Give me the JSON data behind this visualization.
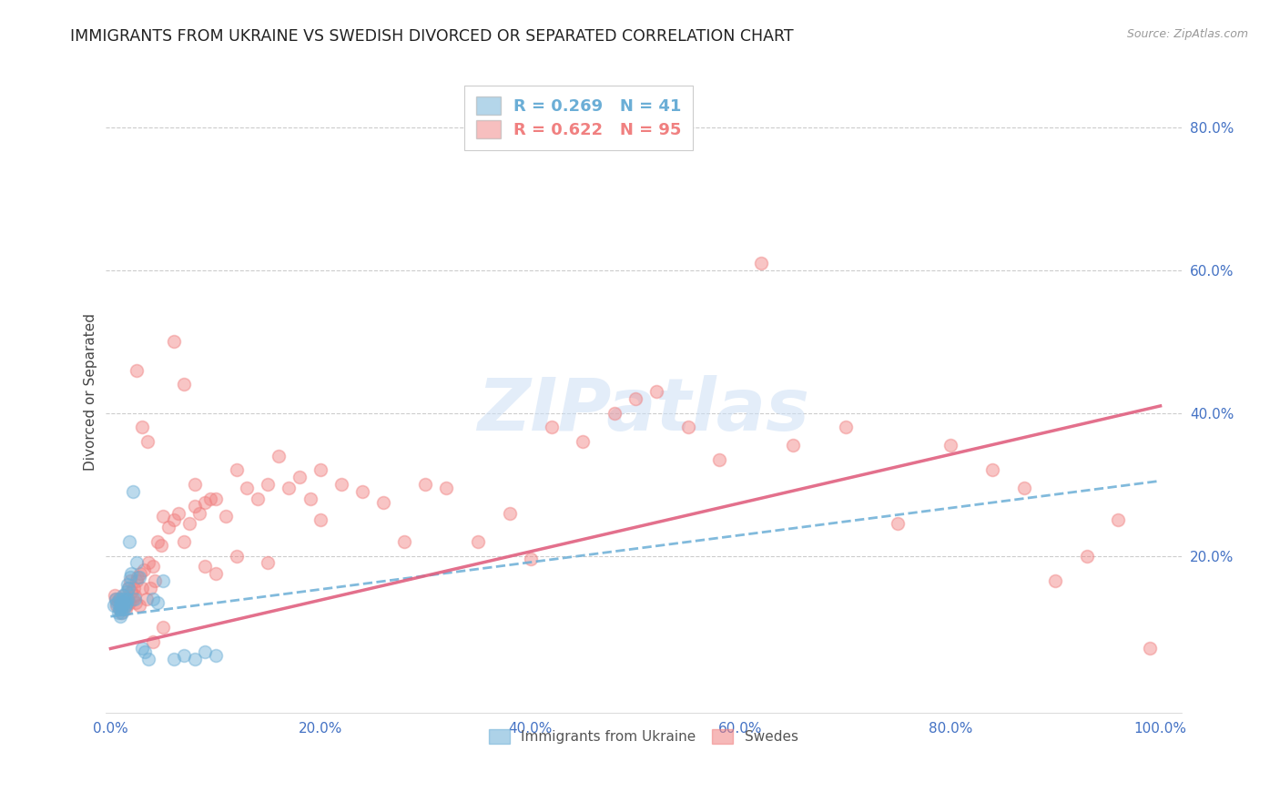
{
  "title": "IMMIGRANTS FROM UKRAINE VS SWEDISH DIVORCED OR SEPARATED CORRELATION CHART",
  "source": "Source: ZipAtlas.com",
  "xlabel_ticks": [
    "0.0%",
    "20.0%",
    "40.0%",
    "60.0%",
    "80.0%",
    "100.0%"
  ],
  "xlabel_vals": [
    0.0,
    0.2,
    0.4,
    0.6,
    0.8,
    1.0
  ],
  "ylabel": "Divorced or Separated",
  "ytick_labels": [
    "20.0%",
    "40.0%",
    "60.0%",
    "80.0%"
  ],
  "ytick_vals": [
    0.2,
    0.4,
    0.6,
    0.8
  ],
  "xlim": [
    -0.005,
    1.02
  ],
  "ylim": [
    -0.02,
    0.88
  ],
  "legend_entries": [
    {
      "label": "R = 0.269   N = 41",
      "color": "#6baed6"
    },
    {
      "label": "R = 0.622   N = 95",
      "color": "#f08080"
    }
  ],
  "ukraine_color": "#6baed6",
  "swedes_color": "#f08080",
  "ukraine_trend_x": [
    0.0,
    1.0
  ],
  "ukraine_trend_y": [
    0.115,
    0.305
  ],
  "swedes_trend_x": [
    0.0,
    1.0
  ],
  "swedes_trend_y": [
    0.07,
    0.41
  ],
  "watermark": "ZIPatlas",
  "background_color": "#ffffff",
  "grid_color": "#cccccc",
  "axis_color": "#4472c4",
  "title_fontsize": 12.5,
  "label_fontsize": 11,
  "tick_fontsize": 11,
  "ukraine_x": [
    0.003,
    0.005,
    0.006,
    0.007,
    0.008,
    0.008,
    0.009,
    0.009,
    0.01,
    0.01,
    0.011,
    0.011,
    0.012,
    0.012,
    0.013,
    0.013,
    0.014,
    0.014,
    0.015,
    0.015,
    0.016,
    0.016,
    0.017,
    0.018,
    0.019,
    0.02,
    0.021,
    0.023,
    0.025,
    0.027,
    0.03,
    0.033,
    0.036,
    0.04,
    0.045,
    0.05,
    0.06,
    0.07,
    0.08,
    0.09,
    0.1
  ],
  "ukraine_y": [
    0.13,
    0.14,
    0.135,
    0.12,
    0.125,
    0.14,
    0.13,
    0.115,
    0.135,
    0.125,
    0.12,
    0.14,
    0.13,
    0.145,
    0.135,
    0.125,
    0.14,
    0.13,
    0.135,
    0.15,
    0.14,
    0.16,
    0.155,
    0.22,
    0.17,
    0.175,
    0.29,
    0.14,
    0.19,
    0.17,
    0.07,
    0.065,
    0.055,
    0.14,
    0.135,
    0.165,
    0.055,
    0.06,
    0.055,
    0.065,
    0.06
  ],
  "swedes_x": [
    0.004,
    0.005,
    0.006,
    0.007,
    0.008,
    0.009,
    0.01,
    0.011,
    0.012,
    0.013,
    0.014,
    0.015,
    0.016,
    0.017,
    0.018,
    0.019,
    0.02,
    0.021,
    0.022,
    0.023,
    0.024,
    0.025,
    0.026,
    0.027,
    0.028,
    0.03,
    0.032,
    0.034,
    0.036,
    0.038,
    0.04,
    0.042,
    0.045,
    0.048,
    0.05,
    0.055,
    0.06,
    0.065,
    0.07,
    0.075,
    0.08,
    0.085,
    0.09,
    0.095,
    0.1,
    0.11,
    0.12,
    0.13,
    0.14,
    0.15,
    0.16,
    0.17,
    0.18,
    0.19,
    0.2,
    0.22,
    0.24,
    0.26,
    0.28,
    0.3,
    0.32,
    0.35,
    0.38,
    0.4,
    0.42,
    0.45,
    0.48,
    0.5,
    0.52,
    0.55,
    0.58,
    0.62,
    0.65,
    0.7,
    0.75,
    0.8,
    0.84,
    0.87,
    0.9,
    0.93,
    0.96,
    0.99,
    0.025,
    0.03,
    0.035,
    0.04,
    0.05,
    0.06,
    0.07,
    0.08,
    0.09,
    0.1,
    0.12,
    0.15,
    0.2
  ],
  "swedes_y": [
    0.145,
    0.14,
    0.13,
    0.135,
    0.14,
    0.125,
    0.12,
    0.135,
    0.14,
    0.145,
    0.125,
    0.13,
    0.14,
    0.155,
    0.135,
    0.165,
    0.15,
    0.14,
    0.155,
    0.145,
    0.135,
    0.165,
    0.17,
    0.13,
    0.175,
    0.155,
    0.18,
    0.14,
    0.19,
    0.155,
    0.185,
    0.165,
    0.22,
    0.215,
    0.255,
    0.24,
    0.25,
    0.26,
    0.22,
    0.245,
    0.27,
    0.26,
    0.275,
    0.28,
    0.28,
    0.255,
    0.32,
    0.295,
    0.28,
    0.3,
    0.34,
    0.295,
    0.31,
    0.28,
    0.32,
    0.3,
    0.29,
    0.275,
    0.22,
    0.3,
    0.295,
    0.22,
    0.26,
    0.195,
    0.38,
    0.36,
    0.4,
    0.42,
    0.43,
    0.38,
    0.335,
    0.61,
    0.355,
    0.38,
    0.245,
    0.355,
    0.32,
    0.295,
    0.165,
    0.2,
    0.25,
    0.07,
    0.46,
    0.38,
    0.36,
    0.08,
    0.1,
    0.5,
    0.44,
    0.3,
    0.185,
    0.175,
    0.2,
    0.19,
    0.25
  ]
}
